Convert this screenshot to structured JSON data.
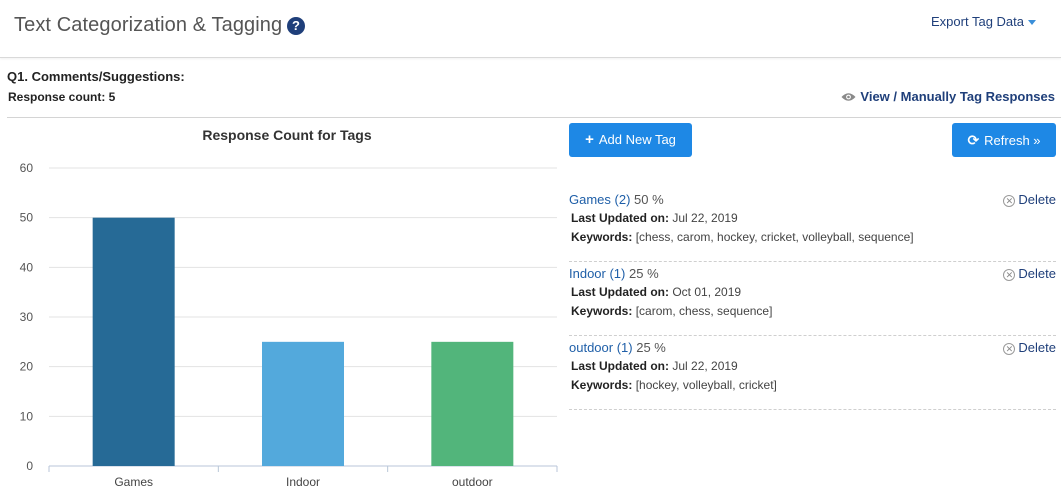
{
  "header": {
    "title": "Text Categorization & Tagging",
    "help_icon": "question-circle-icon",
    "export_label": "Export Tag Data"
  },
  "question": {
    "title": "Q1. Comments/Suggestions:",
    "response_count": "Response count: 5"
  },
  "view_link": {
    "icon": "eye-icon",
    "label": "View / Manually Tag Responses"
  },
  "toolbar": {
    "add_label": "Add New Tag",
    "refresh_label": "Refresh »"
  },
  "tags": [
    {
      "name": "Games (2)",
      "percent": "50 %",
      "updated_label": "Last Updated on:",
      "updated": "Jul 22, 2019",
      "keywords_label": "Keywords:",
      "keywords": "[chess, carom, hockey, cricket, volleyball, sequence]",
      "delete_label": "Delete"
    },
    {
      "name": "Indoor (1)",
      "percent": "25 %",
      "updated_label": "Last Updated on:",
      "updated": "Oct 01, 2019",
      "keywords_label": "Keywords:",
      "keywords": "[carom, chess, sequence]",
      "delete_label": "Delete"
    },
    {
      "name": "outdoor (1)",
      "percent": "25 %",
      "updated_label": "Last Updated on:",
      "updated": "Jul 22, 2019",
      "keywords_label": "Keywords:",
      "keywords": "[hockey, volleyball, cricket]",
      "delete_label": "Delete"
    }
  ],
  "chart_data": {
    "type": "bar",
    "title": "Response Count for Tags",
    "categories": [
      "Games",
      "Indoor",
      "outdoor"
    ],
    "values": [
      50,
      25,
      25
    ],
    "colors": [
      "#266a96",
      "#53a9dc",
      "#52b57b"
    ],
    "yticks": [
      "0",
      "10",
      "20",
      "30",
      "40",
      "50",
      "60"
    ],
    "ylim": [
      0,
      60
    ],
    "grid": true,
    "xlabel": "",
    "ylabel": ""
  }
}
